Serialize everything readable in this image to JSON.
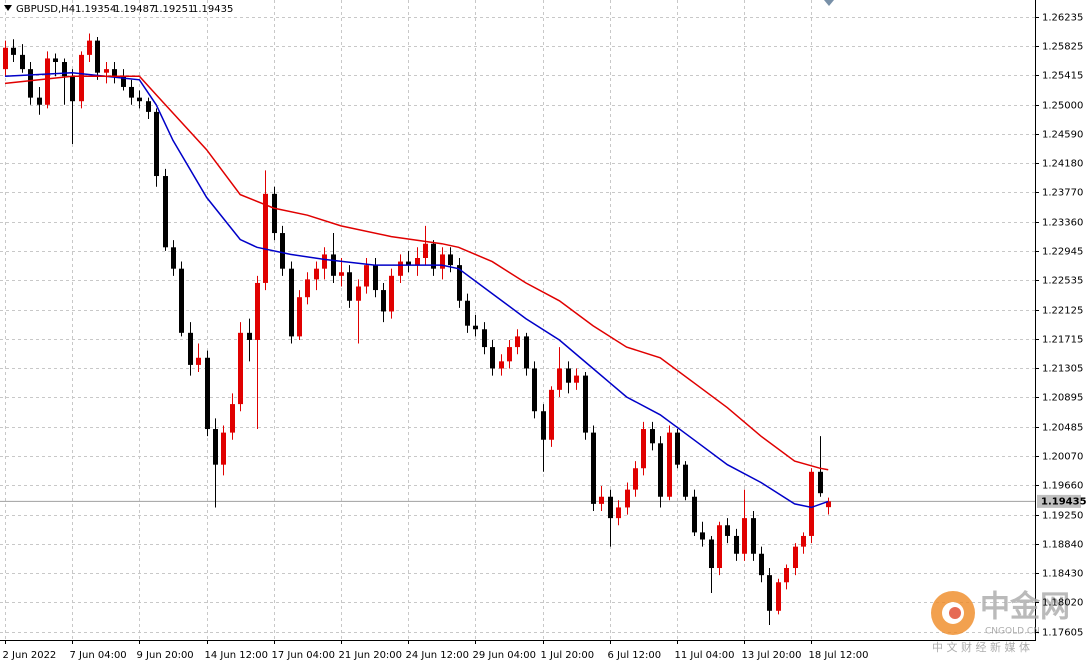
{
  "chart_data": {
    "type": "candlestick",
    "symbol": "GBPUSD,H4",
    "categories": [
      "2 Jun 2022",
      null,
      null,
      null,
      null,
      null,
      null,
      null,
      "7 Jun 04:00",
      null,
      null,
      null,
      null,
      null,
      null,
      null,
      "9 Jun 20:00",
      null,
      null,
      null,
      null,
      null,
      null,
      null,
      "14 Jun 12:00",
      null,
      null,
      null,
      null,
      null,
      null,
      null,
      "17 Jun 04:00",
      null,
      null,
      null,
      null,
      null,
      null,
      null,
      "21 Jun 20:00",
      null,
      null,
      null,
      null,
      null,
      null,
      null,
      "24 Jun 12:00",
      null,
      null,
      null,
      null,
      null,
      null,
      null,
      "29 Jun 04:00",
      null,
      null,
      null,
      null,
      null,
      null,
      null,
      "1 Jul 20:00",
      null,
      null,
      null,
      null,
      null,
      null,
      null,
      "6 Jul 12:00",
      null,
      null,
      null,
      null,
      null,
      null,
      null,
      "11 Jul 04:00",
      null,
      null,
      null,
      null,
      null,
      null,
      null,
      "13 Jul 20:00",
      null,
      null,
      null,
      null,
      null,
      null,
      null,
      "18 Jul 12:00",
      null,
      null
    ],
    "open": [
      1.255,
      1.258,
      1.257,
      1.255,
      1.251,
      1.25,
      1.2565,
      1.256,
      1.254,
      1.2505,
      1.257,
      1.259,
      1.2545,
      1.255,
      1.254,
      1.2525,
      1.251,
      1.2505,
      1.249,
      1.24,
      1.23,
      1.227,
      1.218,
      1.2135,
      1.2145,
      1.2045,
      1.1995,
      1.204,
      1.208,
      1.218,
      1.217,
      1.225,
      1.2375,
      1.232,
      1.227,
      1.2175,
      1.223,
      1.2255,
      1.227,
      1.229,
      1.226,
      1.2265,
      1.2225,
      1.2245,
      1.2275,
      1.224,
      1.221,
      1.226,
      1.228,
      1.2275,
      1.2285,
      1.2305,
      1.227,
      1.229,
      1.2275,
      1.2225,
      1.219,
      1.2185,
      1.216,
      1.213,
      1.214,
      1.216,
      1.2175,
      1.213,
      1.207,
      1.203,
      1.21,
      1.213,
      1.211,
      1.212,
      1.204,
      1.194,
      1.195,
      1.192,
      1.1935,
      1.196,
      1.199,
      1.2045,
      1.2025,
      1.195,
      1.204,
      1.1995,
      1.195,
      1.19,
      1.189,
      1.185,
      1.191,
      1.1895,
      1.187,
      1.192,
      1.187,
      1.184,
      1.179,
      1.183,
      1.185,
      1.188,
      1.1895,
      1.1985,
      1.19354
    ],
    "high": [
      1.259,
      1.2592,
      1.2585,
      1.256,
      1.2525,
      1.2575,
      1.2572,
      1.2565,
      1.255,
      1.2575,
      1.26,
      1.2595,
      1.256,
      1.256,
      1.255,
      1.2535,
      1.252,
      1.251,
      1.2495,
      1.241,
      1.231,
      1.228,
      1.2195,
      1.2165,
      1.2155,
      1.206,
      1.205,
      1.2095,
      1.2195,
      1.22,
      1.226,
      1.2408,
      1.2385,
      1.233,
      1.228,
      1.224,
      1.2265,
      1.228,
      1.23,
      1.232,
      1.2285,
      1.2275,
      1.2255,
      1.2285,
      1.2285,
      1.225,
      1.227,
      1.229,
      1.2295,
      1.23,
      1.233,
      1.231,
      1.23,
      1.23,
      1.2285,
      1.2235,
      1.2205,
      1.2195,
      1.217,
      1.215,
      1.217,
      1.2185,
      1.218,
      1.214,
      1.208,
      1.2105,
      1.216,
      1.214,
      1.213,
      1.2125,
      1.205,
      1.1965,
      1.196,
      1.1945,
      1.197,
      1.2,
      1.2055,
      1.2055,
      1.2035,
      1.205,
      1.2045,
      1.2,
      1.196,
      1.1915,
      1.1895,
      1.1915,
      1.192,
      1.1905,
      1.196,
      1.193,
      1.188,
      1.185,
      1.1835,
      1.1855,
      1.1885,
      1.19,
      1.199,
      1.2035,
      1.19487
    ],
    "low": [
      1.254,
      1.256,
      1.2545,
      1.25,
      1.2486,
      1.2495,
      1.254,
      1.25,
      1.2445,
      1.2495,
      1.256,
      1.2535,
      1.253,
      1.253,
      1.252,
      1.25,
      1.2495,
      1.248,
      1.2385,
      1.2295,
      1.226,
      1.2175,
      1.212,
      1.2125,
      1.2035,
      1.1935,
      1.198,
      1.203,
      1.207,
      1.214,
      1.2045,
      1.224,
      1.231,
      1.226,
      1.2165,
      1.217,
      1.222,
      1.224,
      1.2255,
      1.225,
      1.2245,
      1.2215,
      1.2165,
      1.2235,
      1.223,
      1.2195,
      1.22,
      1.225,
      1.2265,
      1.226,
      1.2275,
      1.226,
      1.2255,
      1.2265,
      1.2215,
      1.218,
      1.2175,
      1.215,
      1.212,
      1.212,
      1.213,
      1.215,
      1.212,
      1.206,
      1.1985,
      1.202,
      1.209,
      1.2095,
      1.21,
      1.203,
      1.193,
      1.193,
      1.188,
      1.191,
      1.1925,
      1.195,
      1.198,
      1.2015,
      1.1935,
      1.1945,
      1.199,
      1.1945,
      1.1895,
      1.188,
      1.1815,
      1.184,
      1.1885,
      1.186,
      1.186,
      1.186,
      1.183,
      1.177,
      1.1785,
      1.182,
      1.184,
      1.187,
      1.1885,
      1.195,
      1.19251
    ],
    "close": [
      1.258,
      1.257,
      1.255,
      1.251,
      1.25,
      1.2565,
      1.256,
      1.254,
      1.2505,
      1.257,
      1.259,
      1.2545,
      1.255,
      1.254,
      1.2525,
      1.251,
      1.2505,
      1.249,
      1.24,
      1.23,
      1.227,
      1.218,
      1.2135,
      1.2145,
      1.2045,
      1.1995,
      1.204,
      1.208,
      1.218,
      1.217,
      1.225,
      1.2375,
      1.232,
      1.227,
      1.2175,
      1.223,
      1.2255,
      1.227,
      1.229,
      1.226,
      1.2265,
      1.2225,
      1.2245,
      1.2275,
      1.224,
      1.221,
      1.226,
      1.228,
      1.2275,
      1.2285,
      1.2305,
      1.227,
      1.229,
      1.2275,
      1.2225,
      1.219,
      1.2185,
      1.216,
      1.213,
      1.214,
      1.216,
      1.2175,
      1.213,
      1.207,
      1.203,
      1.21,
      1.213,
      1.211,
      1.212,
      1.204,
      1.194,
      1.195,
      1.192,
      1.1935,
      1.196,
      1.199,
      1.2045,
      1.2025,
      1.195,
      1.204,
      1.1995,
      1.195,
      1.19,
      1.189,
      1.185,
      1.191,
      1.1895,
      1.187,
      1.192,
      1.187,
      1.184,
      1.179,
      1.183,
      1.185,
      1.188,
      1.1895,
      1.1985,
      1.1955,
      1.19435
    ],
    "up_color": "#e00000",
    "down_color": "#000000",
    "series": [
      {
        "color": "#0000c8",
        "x": [
          0,
          8,
          16,
          18,
          20,
          24,
          28,
          30,
          34,
          38,
          44,
          52,
          54,
          58,
          62,
          66,
          70,
          74,
          78,
          82,
          86,
          90,
          94,
          96,
          98
        ],
        "values": [
          1.254,
          1.2545,
          1.2535,
          1.25,
          1.245,
          1.237,
          1.2311,
          1.23,
          1.229,
          1.2283,
          1.2275,
          1.2275,
          1.227,
          1.2235,
          1.22,
          1.217,
          1.213,
          1.209,
          1.2065,
          1.203,
          1.1995,
          1.197,
          1.194,
          1.1935,
          1.19435
        ]
      },
      {
        "color": "#e00000",
        "x": [
          0,
          8,
          16,
          18,
          24,
          28,
          32,
          36,
          40,
          46,
          52,
          54,
          58,
          62,
          66,
          70,
          74,
          78,
          82,
          86,
          90,
          94,
          97,
          98
        ],
        "values": [
          1.253,
          1.254,
          1.254,
          1.2514,
          1.2437,
          1.2374,
          1.2355,
          1.2345,
          1.233,
          1.2315,
          1.2305,
          1.23,
          1.228,
          1.225,
          1.2225,
          1.219,
          1.216,
          1.2145,
          1.211,
          1.2075,
          1.2035,
          1.2,
          1.199,
          1.1988
        ]
      }
    ],
    "current_price": 1.19435,
    "ylim": [
      1.1749,
      1.2647
    ],
    "yticks": [
      1.26235,
      1.25825,
      1.25415,
      {
        "value": 1.25,
        "label": "1.25000"
      },
      {
        "value": 1.2459,
        "label": "1.24590"
      },
      {
        "value": 1.2418,
        "label": "1.24180"
      },
      {
        "value": 1.2377,
        "label": "1.23770"
      },
      {
        "value": 1.2336,
        "label": "1.23360"
      },
      1.22945,
      1.22535,
      1.22125,
      1.21715,
      1.21305,
      1.20895,
      1.20485,
      {
        "value": 1.2007,
        "label": "1.20070"
      },
      {
        "value": 1.1966,
        "label": "1.19660"
      },
      {
        "value": 1.1925,
        "label": "1.19250"
      },
      {
        "value": 1.1884,
        "label": "1.18840"
      },
      {
        "value": 1.1843,
        "label": "1.18430"
      },
      {
        "value": 1.1802,
        "label": "1.18020"
      },
      1.17605
    ],
    "grid": true
  },
  "watermark": {
    "logo": "中金网",
    "site": "CNGOLD.CN",
    "slogan": "中 文 财 经 新 媒 体"
  }
}
